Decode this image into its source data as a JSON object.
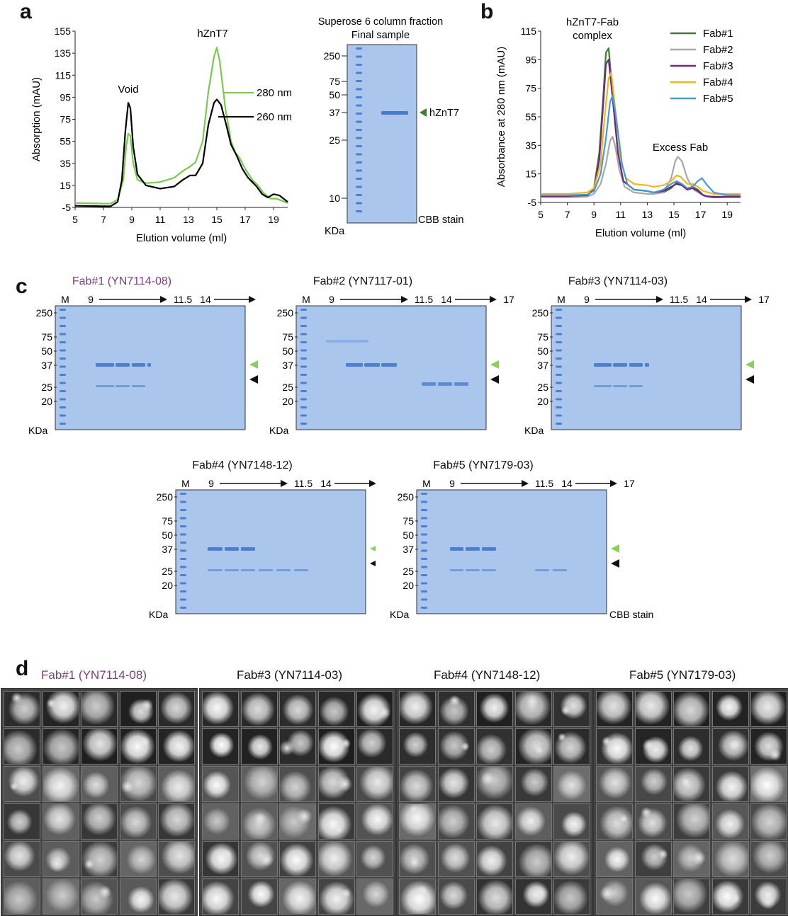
{
  "panels": {
    "a": "a",
    "b": "b",
    "c": "c",
    "d": "d"
  },
  "panel_a": {
    "chart_data": {
      "type": "line",
      "xlabel": "Elution volume (ml)",
      "ylabel": "Absorption (mAU)",
      "xlim": [
        5,
        20
      ],
      "ylim": [
        -5,
        155
      ],
      "xticks": [
        "5",
        "7",
        "9",
        "11",
        "13",
        "15",
        "17",
        "19"
      ],
      "yticks": [
        "-5",
        "15",
        "35",
        "55",
        "75",
        "95",
        "115",
        "135",
        "155"
      ],
      "annotations": [
        "Void",
        "hZnT7"
      ],
      "series": [
        {
          "name": "280 nm",
          "color": "#7dc855",
          "x": [
            5,
            6,
            7,
            7.5,
            8,
            8.4,
            8.6,
            8.75,
            8.9,
            9.1,
            9.4,
            10,
            11,
            12,
            12.6,
            13.1,
            13.5,
            14,
            14.4,
            14.8,
            15,
            15.2,
            15.6,
            16,
            16.3,
            16.6,
            17,
            17.5,
            17.9,
            18.3,
            18.8,
            19.2,
            19.6,
            20
          ],
          "y": [
            -1,
            -1.3,
            -1.5,
            -1.5,
            2,
            20,
            50,
            62,
            60,
            35,
            20,
            17,
            18,
            22,
            28,
            32,
            36,
            55,
            100,
            132,
            140,
            128,
            85,
            55,
            45,
            40,
            30,
            20,
            15,
            8,
            3,
            3,
            1,
            -1
          ]
        },
        {
          "name": "260 nm",
          "color": "#000000",
          "x": [
            5,
            6,
            7,
            7.5,
            8,
            8.3,
            8.55,
            8.75,
            8.9,
            9.1,
            9.4,
            10,
            11,
            12,
            12.6,
            13.1,
            13.5,
            14,
            14.4,
            14.8,
            15,
            15.3,
            15.7,
            16,
            16.4,
            16.8,
            17.2,
            17.5,
            17.8,
            18.2,
            18.6,
            19,
            19.4,
            19.8,
            20
          ],
          "y": [
            -3.5,
            -3.7,
            -4,
            -4,
            0,
            20,
            65,
            90,
            85,
            50,
            25,
            15,
            12,
            14,
            20,
            24,
            24,
            35,
            70,
            90,
            93,
            88,
            68,
            52,
            42,
            30,
            22,
            18,
            14,
            7,
            4,
            7,
            6,
            2,
            0
          ]
        }
      ]
    },
    "label_280": "280 nm",
    "label_260": "260 nm"
  },
  "gel_a": {
    "title1": "Superose 6 column fraction",
    "title2": "Final sample",
    "markers": [
      "250",
      "75",
      "50",
      "37",
      "25",
      "10"
    ],
    "unit": "KDa",
    "stain": "CBB stain",
    "band_label": "hZnT7"
  },
  "panel_b": {
    "chart_data": {
      "type": "line",
      "xlabel": "Elution volume (ml)",
      "ylabel": "Absorbance at 280 nm (mAU)",
      "xlim": [
        5,
        20
      ],
      "ylim": [
        -5,
        115
      ],
      "xticks": [
        "5",
        "7",
        "9",
        "11",
        "13",
        "15",
        "17",
        "19"
      ],
      "yticks": [
        "-5",
        "15",
        "35",
        "55",
        "75",
        "95",
        "115"
      ],
      "annotations": [
        "hZnT7-Fab",
        "complex",
        "Excess Fab"
      ],
      "series": [
        {
          "name": "Fab#1",
          "color": "#3e7d2b",
          "x": [
            5,
            7,
            8.5,
            9,
            9.4,
            9.7,
            9.9,
            10.1,
            10.4,
            10.8,
            11.2,
            12,
            13,
            13.5,
            14.2,
            14.8,
            15.2,
            15.6,
            16,
            16.4,
            16.8,
            17.2,
            17.6,
            18,
            19,
            20
          ],
          "y": [
            -1,
            -1,
            -0.5,
            5,
            30,
            70,
            100,
            103,
            70,
            30,
            10,
            4,
            3,
            2,
            2,
            5,
            9,
            7,
            4,
            6,
            4,
            0,
            -1,
            -1.5,
            -1.5,
            -1.5
          ]
        },
        {
          "name": "Fab#2",
          "color": "#a8a8a8",
          "x": [
            5,
            7,
            8.5,
            9,
            9.5,
            9.9,
            10.2,
            10.4,
            10.6,
            10.9,
            11.3,
            12,
            13,
            13.5,
            14.2,
            14.8,
            15.1,
            15.3,
            15.6,
            16,
            16.5,
            17,
            17.5,
            18,
            19,
            20
          ],
          "y": [
            -1.5,
            -1.5,
            -1,
            1,
            8,
            22,
            38,
            41,
            34,
            18,
            6,
            2,
            1,
            1,
            2,
            12,
            24,
            27,
            24,
            12,
            4,
            1,
            -0.5,
            -1,
            -1.5,
            -1.5
          ]
        },
        {
          "name": "Fab#3",
          "color": "#6a2a84",
          "x": [
            5,
            7,
            8.5,
            9,
            9.4,
            9.7,
            9.9,
            10.1,
            10.4,
            10.8,
            11.2,
            12,
            13,
            13.5,
            14.2,
            14.8,
            15.2,
            15.6,
            16,
            16.4,
            16.8,
            17.2,
            17.6,
            18,
            19,
            20
          ],
          "y": [
            -0.5,
            -0.5,
            0,
            4,
            25,
            65,
            92,
            95,
            68,
            30,
            10,
            4,
            3,
            2,
            3,
            6,
            8,
            7,
            4,
            5,
            3,
            0,
            -1,
            -1,
            -1,
            -1
          ]
        },
        {
          "name": "Fab#4",
          "color": "#f0b428",
          "x": [
            5,
            7,
            8.5,
            9,
            9.5,
            9.8,
            10.1,
            10.3,
            10.6,
            11,
            11.4,
            12,
            13,
            13.5,
            14.2,
            14.8,
            15.2,
            15.5,
            16,
            16.4,
            16.8,
            17.2,
            17.6,
            18,
            19,
            20
          ],
          "y": [
            1,
            1,
            2,
            5,
            22,
            55,
            82,
            86,
            60,
            25,
            12,
            8,
            7,
            6,
            7,
            10,
            14,
            13,
            8,
            8,
            6,
            3,
            2,
            1,
            1,
            1
          ]
        },
        {
          "name": "Fab#5",
          "color": "#4a9ad0",
          "x": [
            5,
            7,
            8.5,
            9,
            9.5,
            9.9,
            10.2,
            10.4,
            10.7,
            11.1,
            11.5,
            12,
            13,
            13.5,
            14.2,
            14.8,
            15.2,
            15.6,
            16,
            16.4,
            16.8,
            17.1,
            17.5,
            18,
            19,
            20
          ],
          "y": [
            0,
            0,
            0.5,
            3,
            15,
            40,
            65,
            70,
            52,
            22,
            8,
            4,
            3,
            2,
            4,
            8,
            10,
            8,
            5,
            6,
            10,
            12,
            7,
            2,
            0,
            0
          ]
        }
      ]
    }
  },
  "panel_c": {
    "lane_M": "M",
    "lane_9": "9",
    "lane_115": "11.5",
    "lane_14": "14",
    "lane_17": "17",
    "unit": "KDa",
    "stain": "CBB stain",
    "markers": [
      "250",
      "75",
      "50",
      "37",
      "25",
      "20"
    ],
    "gels": [
      {
        "title": "Fab#1 (YN7114-08)",
        "highlight": true
      },
      {
        "title": "Fab#2 (YN7117-01)",
        "highlight": false
      },
      {
        "title": "Fab#3 (YN7114-03)",
        "highlight": false
      },
      {
        "title": "Fab#4 (YN7148-12)",
        "highlight": false
      },
      {
        "title": "Fab#5 (YN7179-03)",
        "highlight": false
      }
    ]
  },
  "panel_d": {
    "grids": [
      {
        "title": "Fab#1 (YN7114-08)",
        "highlight": true
      },
      {
        "title": "Fab#3 (YN7114-03)",
        "highlight": false
      },
      {
        "title": "Fab#4 (YN7148-12)",
        "highlight": false
      },
      {
        "title": "Fab#5 (YN7179-03)",
        "highlight": false
      }
    ]
  }
}
